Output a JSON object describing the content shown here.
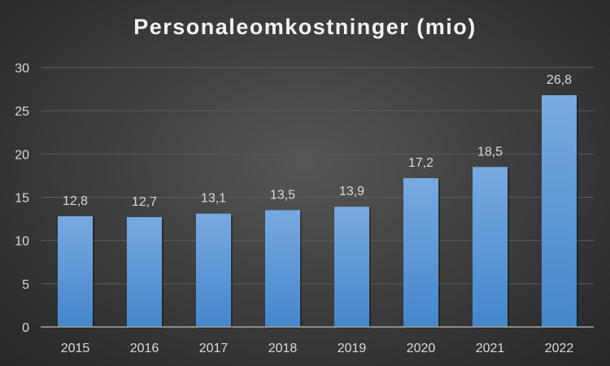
{
  "chart_data": {
    "type": "bar",
    "title": "Personaleomkostninger (mio)",
    "categories": [
      "2015",
      "2016",
      "2017",
      "2018",
      "2019",
      "2020",
      "2021",
      "2022"
    ],
    "values": [
      12.8,
      12.7,
      13.1,
      13.5,
      13.9,
      17.2,
      18.5,
      26.8
    ],
    "data_labels": [
      "12,8",
      "12,7",
      "13,1",
      "13,5",
      "13,9",
      "17,2",
      "18,5",
      "26,8"
    ],
    "yticks": [
      "0",
      "5",
      "10",
      "15",
      "20",
      "25",
      "30"
    ],
    "ylim": [
      0,
      30
    ],
    "xlabel": "",
    "ylabel": "",
    "grid": true,
    "legend": "none",
    "colors": {
      "bar_top": "#78aae0",
      "bar_bottom": "#4486cc",
      "grid": "#595959",
      "axis": "#a6a6a6",
      "text": "#d9d9d9"
    }
  }
}
